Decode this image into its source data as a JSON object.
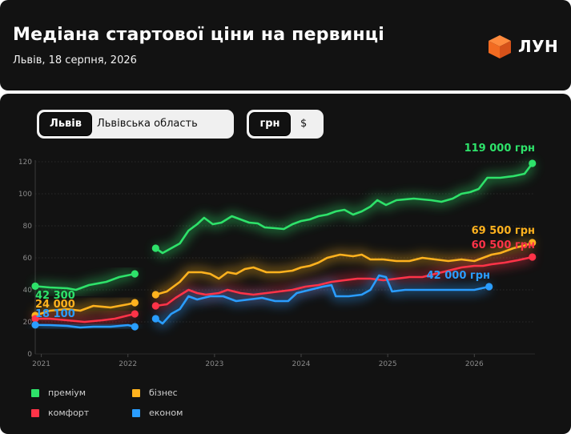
{
  "header": {
    "title": "Медіана стартової ціни на первинці",
    "subtitle": "Львів, 18 серпня, 2026",
    "brand": "ЛУН",
    "brand_color": "#f26b21"
  },
  "controls": {
    "region": {
      "options": [
        "Львів",
        "Львівська область"
      ],
      "selected": "Львів"
    },
    "currency": {
      "options": [
        "грн",
        "$"
      ],
      "selected": "грн"
    }
  },
  "chart_data": {
    "type": "line",
    "title": "",
    "xlabel": "",
    "ylabel": "",
    "xlim": [
      2020.93,
      2026.7
    ],
    "ylim": [
      0,
      120
    ],
    "yticks": [
      0,
      20,
      40,
      60,
      80,
      100,
      120
    ],
    "xticks": [
      2021,
      2022,
      2023,
      2024,
      2025,
      2026
    ],
    "x_tick_labels": [
      "2021",
      "2022",
      "2023",
      "2024",
      "2025",
      "2026"
    ],
    "grid": "horizontal",
    "legend_position": "bottom-left",
    "series": [
      {
        "name": "преміум",
        "color": "#2ee26a",
        "start_label": "42 300",
        "end_label": "119 000 грн",
        "segments": [
          [
            [
              2020.93,
              42.3
            ],
            [
              2021.1,
              41.5
            ],
            [
              2021.3,
              41
            ],
            [
              2021.4,
              40
            ],
            [
              2021.55,
              43
            ],
            [
              2021.75,
              45
            ],
            [
              2021.9,
              48
            ],
            [
              2022.08,
              50
            ]
          ],
          [
            [
              2022.32,
              66
            ],
            [
              2022.4,
              63
            ],
            [
              2022.6,
              69
            ],
            [
              2022.7,
              77
            ],
            [
              2022.8,
              81
            ],
            [
              2022.88,
              85
            ],
            [
              2022.98,
              81
            ],
            [
              2023.08,
              82
            ],
            [
              2023.2,
              86
            ],
            [
              2023.3,
              84
            ],
            [
              2023.4,
              82
            ],
            [
              2023.5,
              81.5
            ],
            [
              2023.58,
              79
            ],
            [
              2023.7,
              78.5
            ],
            [
              2023.8,
              78
            ],
            [
              2023.9,
              81
            ],
            [
              2024.0,
              83
            ],
            [
              2024.1,
              84
            ],
            [
              2024.2,
              86
            ],
            [
              2024.3,
              87
            ],
            [
              2024.4,
              89
            ],
            [
              2024.5,
              90
            ],
            [
              2024.6,
              87
            ],
            [
              2024.7,
              89
            ],
            [
              2024.8,
              92
            ],
            [
              2024.88,
              96
            ],
            [
              2024.98,
              93
            ],
            [
              2025.1,
              96
            ],
            [
              2025.3,
              97
            ],
            [
              2025.5,
              96
            ],
            [
              2025.62,
              95
            ],
            [
              2025.75,
              97
            ],
            [
              2025.85,
              100
            ],
            [
              2025.95,
              101
            ],
            [
              2026.05,
              103
            ],
            [
              2026.15,
              110
            ],
            [
              2026.3,
              110
            ],
            [
              2026.45,
              111
            ],
            [
              2026.58,
              112.5
            ],
            [
              2026.67,
              119
            ]
          ]
        ]
      },
      {
        "name": "бізнес",
        "color": "#ffb21e",
        "start_label": "24 000",
        "end_label": "69 500 грн",
        "segments": [
          [
            [
              2020.93,
              24
            ],
            [
              2021.1,
              27
            ],
            [
              2021.3,
              28
            ],
            [
              2021.45,
              27
            ],
            [
              2021.6,
              30
            ],
            [
              2021.8,
              29
            ],
            [
              2022.0,
              31
            ],
            [
              2022.08,
              32
            ]
          ],
          [
            [
              2022.32,
              37
            ],
            [
              2022.45,
              39
            ],
            [
              2022.6,
              45
            ],
            [
              2022.7,
              51
            ],
            [
              2022.85,
              51
            ],
            [
              2022.95,
              50
            ],
            [
              2023.05,
              47
            ],
            [
              2023.15,
              51
            ],
            [
              2023.25,
              50
            ],
            [
              2023.35,
              53
            ],
            [
              2023.45,
              54
            ],
            [
              2023.6,
              51
            ],
            [
              2023.75,
              51
            ],
            [
              2023.9,
              52
            ],
            [
              2024.0,
              54
            ],
            [
              2024.1,
              55
            ],
            [
              2024.2,
              57
            ],
            [
              2024.3,
              60
            ],
            [
              2024.45,
              62
            ],
            [
              2024.6,
              61
            ],
            [
              2024.7,
              62
            ],
            [
              2024.8,
              59
            ],
            [
              2024.95,
              59
            ],
            [
              2025.1,
              58
            ],
            [
              2025.25,
              58
            ],
            [
              2025.4,
              60
            ],
            [
              2025.55,
              59
            ],
            [
              2025.7,
              58
            ],
            [
              2025.85,
              59
            ],
            [
              2026.0,
              58
            ],
            [
              2026.1,
              60
            ],
            [
              2026.2,
              62
            ],
            [
              2026.3,
              63
            ],
            [
              2026.45,
              66
            ],
            [
              2026.6,
              68
            ],
            [
              2026.67,
              69.5
            ]
          ]
        ]
      },
      {
        "name": "комфорт",
        "color": "#ff3348",
        "start_label": "",
        "end_label": "60 500 грн",
        "segments": [
          [
            [
              2020.93,
              22
            ],
            [
              2021.1,
              22
            ],
            [
              2021.3,
              21
            ],
            [
              2021.5,
              20
            ],
            [
              2021.7,
              21
            ],
            [
              2021.85,
              22
            ],
            [
              2022.0,
              24
            ],
            [
              2022.08,
              25
            ]
          ],
          [
            [
              2022.32,
              30
            ],
            [
              2022.45,
              31
            ],
            [
              2022.55,
              35
            ],
            [
              2022.7,
              40
            ],
            [
              2022.8,
              38
            ],
            [
              2022.9,
              37
            ],
            [
              2023.05,
              38
            ],
            [
              2023.15,
              40
            ],
            [
              2023.3,
              38
            ],
            [
              2023.45,
              37
            ],
            [
              2023.6,
              38
            ],
            [
              2023.75,
              39
            ],
            [
              2023.9,
              40
            ],
            [
              2024.05,
              42
            ],
            [
              2024.2,
              43
            ],
            [
              2024.35,
              45
            ],
            [
              2024.5,
              46
            ],
            [
              2024.65,
              47
            ],
            [
              2024.8,
              47
            ],
            [
              2024.95,
              46
            ],
            [
              2025.1,
              47
            ],
            [
              2025.25,
              48
            ],
            [
              2025.4,
              48
            ],
            [
              2025.55,
              50
            ],
            [
              2025.7,
              52
            ],
            [
              2025.85,
              54
            ],
            [
              2026.0,
              55
            ],
            [
              2026.1,
              55
            ],
            [
              2026.2,
              56
            ],
            [
              2026.35,
              57
            ],
            [
              2026.5,
              58.5
            ],
            [
              2026.67,
              60.5
            ]
          ]
        ]
      },
      {
        "name": "економ",
        "color": "#2a9dff",
        "start_label": "18 100",
        "end_label": "42 000 грн",
        "segments": [
          [
            [
              2020.93,
              18.1
            ],
            [
              2021.1,
              18
            ],
            [
              2021.3,
              17.5
            ],
            [
              2021.45,
              16.5
            ],
            [
              2021.6,
              17
            ],
            [
              2021.8,
              17
            ],
            [
              2022.0,
              18
            ],
            [
              2022.08,
              17
            ]
          ],
          [
            [
              2022.32,
              22
            ],
            [
              2022.4,
              19
            ],
            [
              2022.5,
              25
            ],
            [
              2022.6,
              28
            ],
            [
              2022.7,
              36
            ],
            [
              2022.8,
              34
            ],
            [
              2022.95,
              36
            ],
            [
              2023.1,
              36
            ],
            [
              2023.25,
              33
            ],
            [
              2023.4,
              34
            ],
            [
              2023.55,
              35
            ],
            [
              2023.7,
              33
            ],
            [
              2023.85,
              33
            ],
            [
              2023.95,
              38
            ],
            [
              2024.1,
              40
            ],
            [
              2024.25,
              42
            ],
            [
              2024.35,
              43
            ],
            [
              2024.4,
              36
            ],
            [
              2024.55,
              36
            ],
            [
              2024.7,
              37
            ],
            [
              2024.8,
              40
            ],
            [
              2024.9,
              49
            ],
            [
              2024.98,
              48
            ],
            [
              2025.05,
              39
            ],
            [
              2025.2,
              40
            ],
            [
              2025.4,
              40
            ],
            [
              2025.6,
              40
            ],
            [
              2025.8,
              40
            ],
            [
              2026.0,
              40
            ],
            [
              2026.17,
              42
            ]
          ]
        ]
      }
    ]
  }
}
